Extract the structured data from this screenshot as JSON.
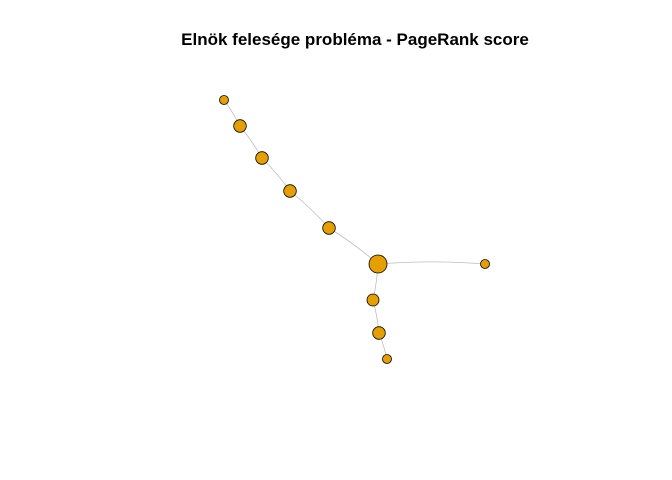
{
  "title": "Elnök felesége probléma - PageRank score",
  "colors": {
    "node_fill": "#E69F00",
    "node_stroke": "#000000",
    "edge": "#BEBEBE"
  },
  "nodes": [
    {
      "id": "n1",
      "score": 0.25
    },
    {
      "id": "n2",
      "score": 0.55
    },
    {
      "id": "n3",
      "score": 0.55
    },
    {
      "id": "n4",
      "score": 0.55
    },
    {
      "id": "n5",
      "score": 0.55
    },
    {
      "id": "n6",
      "score": 1.0
    },
    {
      "id": "n7",
      "score": 0.25
    },
    {
      "id": "n8",
      "score": 0.5
    },
    {
      "id": "n9",
      "score": 0.55
    },
    {
      "id": "n10",
      "score": 0.25
    }
  ],
  "edges": [
    [
      "n1",
      "n2"
    ],
    [
      "n2",
      "n3"
    ],
    [
      "n3",
      "n4"
    ],
    [
      "n4",
      "n5"
    ],
    [
      "n5",
      "n6"
    ],
    [
      "n6",
      "n7"
    ],
    [
      "n6",
      "n8"
    ],
    [
      "n8",
      "n9"
    ],
    [
      "n9",
      "n10"
    ]
  ]
}
